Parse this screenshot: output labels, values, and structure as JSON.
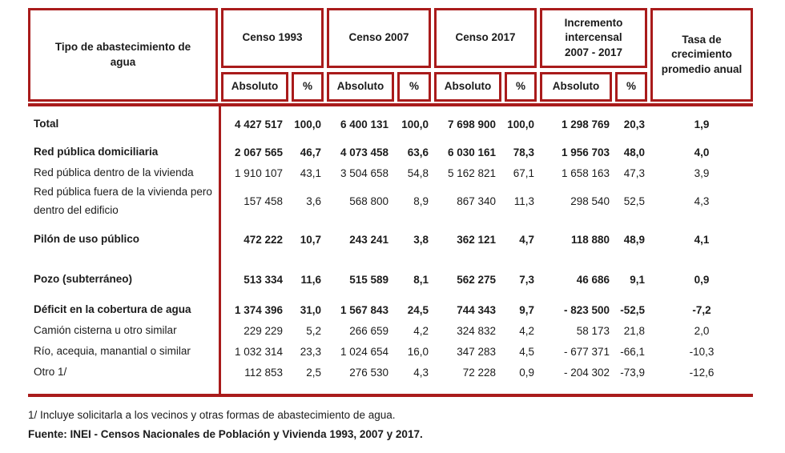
{
  "colors": {
    "table_red": "#A91B1B",
    "text": "#1B1B1B"
  },
  "table": {
    "header": {
      "tipo": "Tipo de abastecimiento de agua",
      "groups": [
        "Censo 1993",
        "Censo 2007",
        "Censo 2017",
        "Incremento intercensal 2007 - 2017"
      ],
      "absoluto": "Absoluto",
      "pct": "%",
      "tasa": "Tasa de crecimiento promedio anual"
    },
    "rows": [
      {
        "label": "Total",
        "bold": true,
        "gap_before": "",
        "values": [
          "4 427 517",
          "100,0",
          "6 400 131",
          "100,0",
          "7 698 900",
          "100,0",
          "1 298 769",
          "20,3",
          "1,9"
        ]
      },
      {
        "label": "Red pública domiciliaria",
        "bold": true,
        "gap_before": "sm",
        "values": [
          "2 067 565",
          "46,7",
          "4 073 458",
          "63,6",
          "6 030 161",
          "78,3",
          "1 956 703",
          "48,0",
          "4,0"
        ]
      },
      {
        "label": "Red pública dentro de la vivienda",
        "bold": false,
        "gap_before": "",
        "values": [
          "1 910 107",
          "43,1",
          "3 504 658",
          "54,8",
          "5 162 821",
          "67,1",
          "1 658 163",
          "47,3",
          "3,9"
        ]
      },
      {
        "label": "Red pública fuera de la vivienda pero dentro del edificio",
        "bold": false,
        "gap_before": "",
        "values": [
          "157 458",
          "3,6",
          "568 800",
          "8,9",
          "867 340",
          "11,3",
          "298 540",
          "52,5",
          "4,3"
        ]
      },
      {
        "label": "Pilón de uso público",
        "bold": true,
        "gap_before": "md",
        "values": [
          "472 222",
          "10,7",
          "243 241",
          "3,8",
          "362 121",
          "4,7",
          "118 880",
          "48,9",
          "4,1"
        ]
      },
      {
        "label": "Pozo (subterráneo)",
        "bold": true,
        "gap_before": "lg",
        "values": [
          "513 334",
          "11,6",
          "515 589",
          "8,1",
          "562 275",
          "7,3",
          "46 686",
          "9,1",
          "0,9"
        ]
      },
      {
        "label": "Déficit en la cobertura de agua",
        "bold": true,
        "gap_before": "md",
        "values": [
          "1 374 396",
          "31,0",
          "1 567 843",
          "24,5",
          "744 343",
          "9,7",
          "- 823 500",
          "-52,5",
          "-7,2"
        ]
      },
      {
        "label": "Camión cisterna u otro similar",
        "bold": false,
        "gap_before": "",
        "values": [
          "229 229",
          "5,2",
          "266 659",
          "4,2",
          "324 832",
          "4,2",
          "58 173",
          "21,8",
          "2,0"
        ]
      },
      {
        "label": "Río, acequia, manantial o similar",
        "bold": false,
        "gap_before": "",
        "values": [
          "1 032 314",
          "23,3",
          "1 024 654",
          "16,0",
          "347 283",
          "4,5",
          "- 677 371",
          "-66,1",
          "-10,3"
        ]
      },
      {
        "label": "Otro 1/",
        "bold": false,
        "gap_before": "",
        "values": [
          "112 853",
          "2,5",
          "276 530",
          "4,3",
          "72 228",
          "0,9",
          "- 204 302",
          "-73,9",
          "-12,6"
        ]
      }
    ]
  },
  "notes": {
    "footnote": "1/ Incluye solicitarla a los vecinos y otras formas de abastecimiento de agua.",
    "source": "Fuente: INEI - Censos Nacionales de Población y Vivienda 1993, 2007 y 2017."
  }
}
